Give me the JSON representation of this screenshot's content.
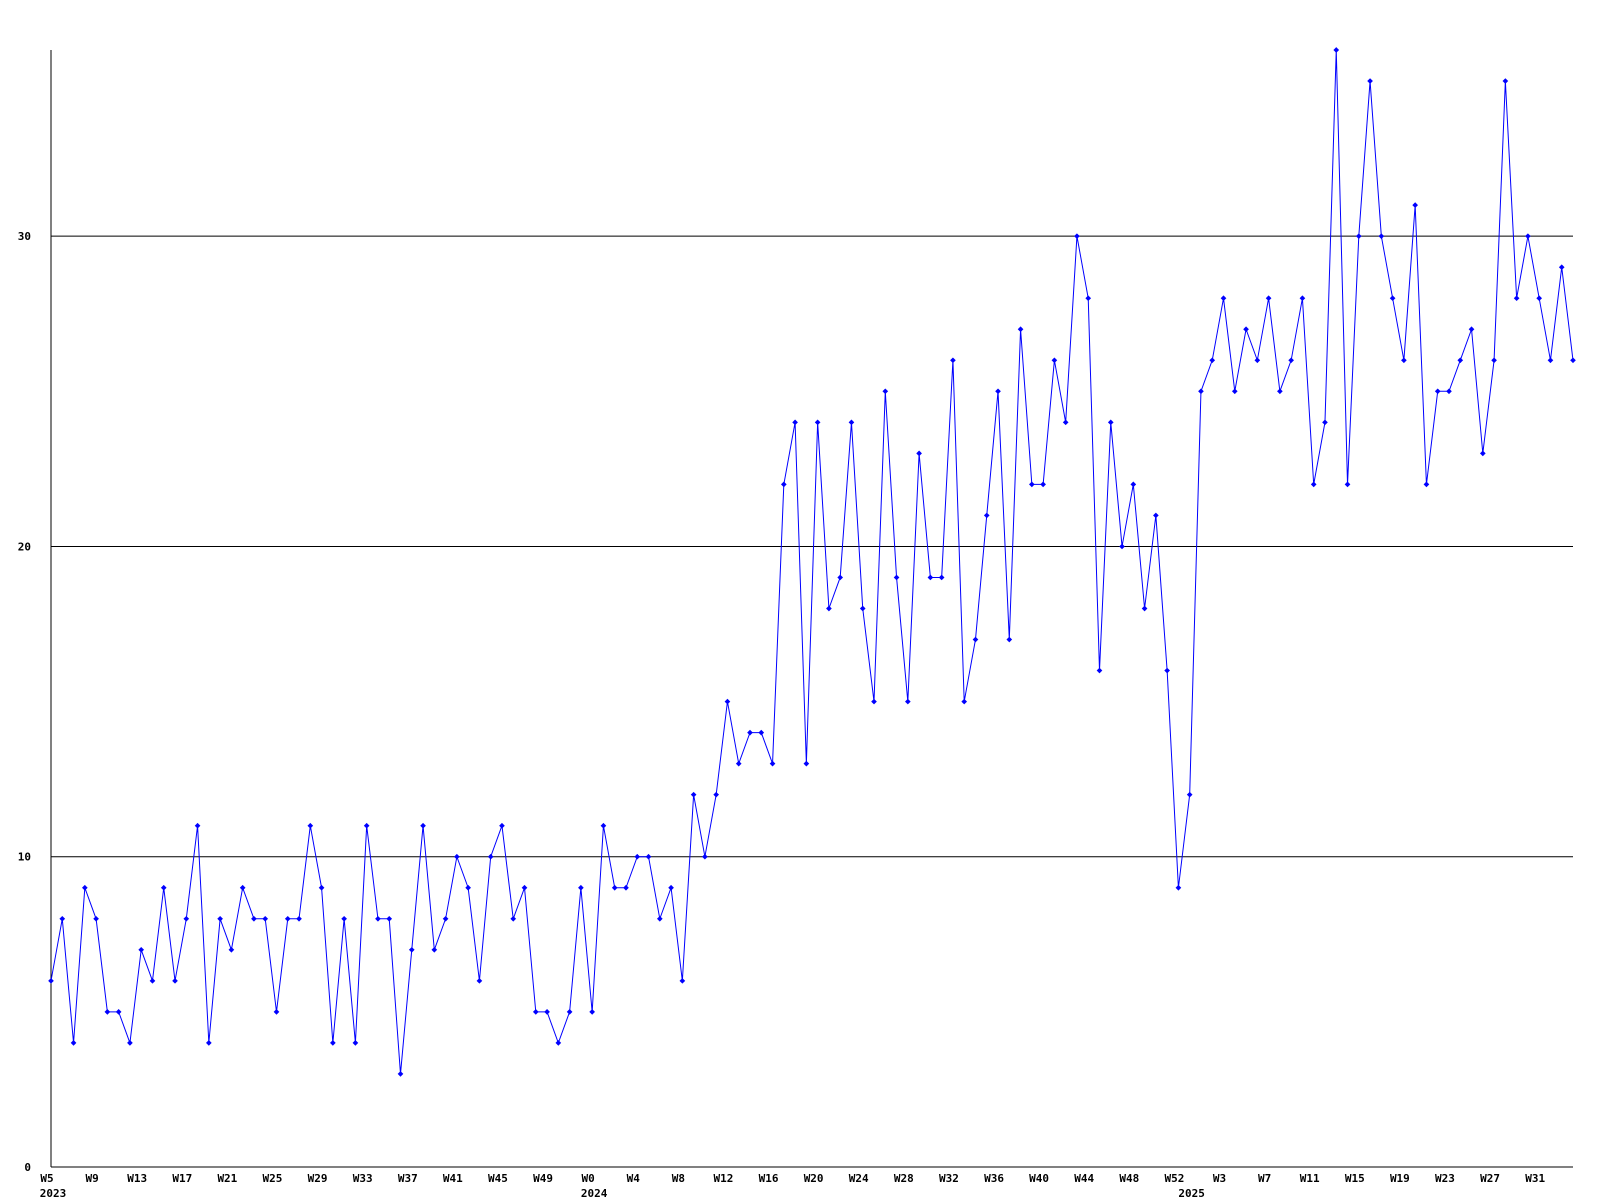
{
  "chart_data": {
    "type": "line",
    "categories": [
      "W5",
      null,
      null,
      null,
      "W9",
      null,
      null,
      null,
      "W13",
      null,
      null,
      null,
      "W17",
      null,
      null,
      null,
      "W21",
      null,
      null,
      null,
      "W25",
      null,
      null,
      null,
      "W29",
      null,
      null,
      null,
      "W33",
      null,
      null,
      null,
      "W37",
      null,
      null,
      null,
      "W41",
      null,
      null,
      null,
      "W45",
      null,
      null,
      null,
      "W49",
      null,
      null,
      null,
      "W0",
      null,
      null,
      null,
      "W4",
      null,
      null,
      null,
      "W8",
      null,
      null,
      null,
      "W12",
      null,
      null,
      null,
      "W16",
      null,
      null,
      null,
      "W20",
      null,
      null,
      null,
      "W24",
      null,
      null,
      null,
      "W28",
      null,
      null,
      null,
      "W32",
      null,
      null,
      null,
      "W36",
      null,
      null,
      null,
      "W40",
      null,
      null,
      null,
      "W44",
      null,
      null,
      null,
      "W48",
      null,
      null,
      null,
      "W52",
      null,
      null,
      null,
      "W3",
      null,
      null,
      null,
      "W7",
      null,
      null,
      null,
      "W11",
      null,
      null,
      null,
      "W15",
      null,
      null,
      null,
      "W19",
      null,
      null,
      null,
      "W23",
      null,
      null,
      null,
      "W27",
      null,
      null,
      null,
      "W31",
      null,
      null,
      null
    ],
    "x_group_labels": [
      {
        "index": 0,
        "label": "2023"
      },
      {
        "index": 48,
        "label": "2024"
      },
      {
        "index": 101,
        "label": "2025"
      }
    ],
    "series": [
      {
        "color": "#0000ff",
        "values": [
          6,
          8,
          4,
          9,
          8,
          5,
          5,
          4,
          7,
          6,
          9,
          6,
          8,
          11,
          4,
          8,
          7,
          9,
          8,
          8,
          5,
          8,
          8,
          11,
          9,
          4,
          8,
          4,
          11,
          8,
          8,
          3,
          7,
          11,
          7,
          8,
          10,
          9,
          6,
          10,
          11,
          8,
          9,
          5,
          5,
          4,
          5,
          9,
          5,
          11,
          9,
          9,
          10,
          10,
          8,
          9,
          6,
          12,
          10,
          12,
          15,
          13,
          14,
          14,
          13,
          22,
          24,
          13,
          24,
          18,
          19,
          24,
          18,
          15,
          25,
          19,
          15,
          23,
          19,
          19,
          26,
          15,
          17,
          21,
          25,
          17,
          27,
          22,
          22,
          26,
          24,
          30,
          28,
          16,
          24,
          20,
          22,
          18,
          21,
          16,
          9,
          12,
          25,
          26,
          28,
          25,
          27,
          26,
          28,
          25,
          26,
          28,
          22,
          24,
          36,
          22,
          30,
          35,
          30,
          28,
          26,
          31,
          22,
          25,
          25,
          26,
          27,
          23,
          26,
          35,
          28,
          30,
          28,
          26,
          29,
          26
        ]
      }
    ],
    "ylim": [
      0,
      36
    ],
    "yticks": [
      0,
      10,
      20,
      30
    ],
    "grid": true
  }
}
